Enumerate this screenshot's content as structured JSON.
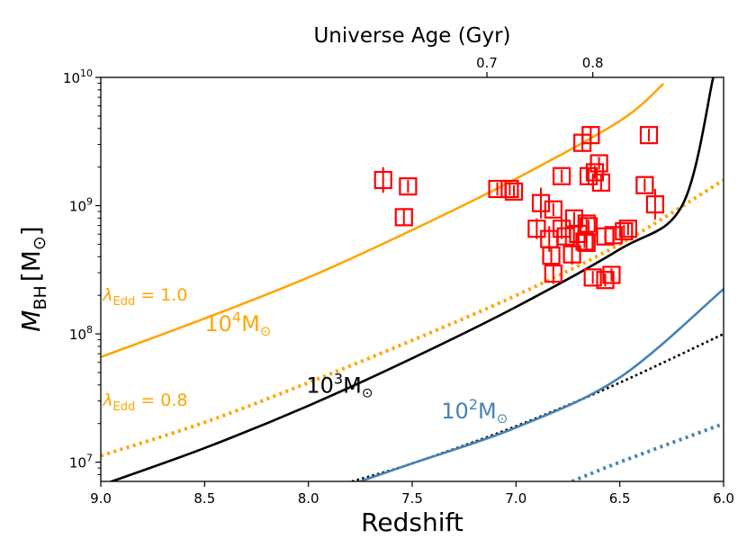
{
  "chart_data": {
    "type": "scatter",
    "title": "",
    "xlabel": "Redshift",
    "ylabel_main": "M",
    "ylabel_sub": "BH",
    "ylabel_unit": "[M",
    "ylabel_unit_sub": "⊙",
    "ylabel_close": "]",
    "top_xlabel": "Universe Age (Gyr)",
    "xlim": [
      9.0,
      6.0
    ],
    "ylim_log10": [
      6.85,
      10.0
    ],
    "x_ticks": [
      {
        "value": 9.0,
        "label": "9.0"
      },
      {
        "value": 8.5,
        "label": "8.5"
      },
      {
        "value": 8.0,
        "label": "8.0"
      },
      {
        "value": 7.5,
        "label": "7.5"
      },
      {
        "value": 7.0,
        "label": "7.0"
      },
      {
        "value": 6.5,
        "label": "6.5"
      },
      {
        "value": 6.0,
        "label": "6.0"
      }
    ],
    "y_ticks": [
      {
        "exp": 7,
        "base": "10",
        "sup": "7"
      },
      {
        "exp": 8,
        "base": "10",
        "sup": "8"
      },
      {
        "exp": 9,
        "base": "10",
        "sup": "9"
      },
      {
        "exp": 10,
        "base": "10",
        "sup": "10"
      }
    ],
    "top_ticks": [
      {
        "z": 7.14,
        "label": "0.7"
      },
      {
        "z": 6.63,
        "label": "0.8"
      }
    ],
    "colors": {
      "orange": "#ffa500",
      "black": "#000000",
      "blue": "#4682b4",
      "red": "#ff0000"
    },
    "curves": [
      {
        "name": "seed-1e4-edd1",
        "color": "orange",
        "style": "solid",
        "points": [
          [
            9.0,
            7.82
          ],
          [
            8.5,
            8.12
          ],
          [
            8.0,
            8.44
          ],
          [
            7.5,
            8.81
          ],
          [
            7.0,
            9.21
          ],
          [
            6.5,
            9.66
          ],
          [
            6.29,
            9.95
          ]
        ]
      },
      {
        "name": "seed-1e4-edd08",
        "color": "orange",
        "style": "dotted",
        "points": [
          [
            9.0,
            7.05
          ],
          [
            8.5,
            7.31
          ],
          [
            8.0,
            7.62
          ],
          [
            7.5,
            7.95
          ],
          [
            7.0,
            8.3
          ],
          [
            6.5,
            8.7
          ],
          [
            6.0,
            9.2
          ]
        ]
      },
      {
        "name": "seed-1e3-edd1",
        "color": "black",
        "style": "solid",
        "points": [
          [
            9.0,
            6.82
          ],
          [
            8.5,
            7.11
          ],
          [
            8.0,
            7.44
          ],
          [
            7.5,
            7.81
          ],
          [
            7.0,
            8.21
          ],
          [
            6.5,
            8.66
          ],
          [
            6.2,
            9.0
          ],
          [
            6.05,
            10.0
          ]
        ]
      },
      {
        "name": "seed-1e3-edd08",
        "color": "black",
        "style": "dotted",
        "points": [
          [
            7.79,
            6.85
          ],
          [
            7.5,
            6.99
          ],
          [
            7.0,
            7.28
          ],
          [
            6.5,
            7.62
          ],
          [
            6.0,
            8.0
          ]
        ]
      },
      {
        "name": "seed-1e2-edd1",
        "color": "blue",
        "style": "solid",
        "points": [
          [
            7.75,
            6.85
          ],
          [
            7.5,
            6.99
          ],
          [
            7.0,
            7.27
          ],
          [
            6.5,
            7.66
          ],
          [
            6.0,
            8.35
          ]
        ]
      },
      {
        "name": "seed-1e2-edd08",
        "color": "blue",
        "style": "dotted",
        "points": [
          [
            6.73,
            6.85
          ],
          [
            6.5,
            7.0
          ],
          [
            6.0,
            7.3
          ]
        ]
      }
    ],
    "points": [
      {
        "z": 7.64,
        "logm": 9.2,
        "err": 0.1
      },
      {
        "z": 7.54,
        "logm": 8.91,
        "err": 0.07
      },
      {
        "z": 7.52,
        "logm": 9.15,
        "err": 0.05
      },
      {
        "z": 7.09,
        "logm": 9.13,
        "err": 0.05
      },
      {
        "z": 7.03,
        "logm": 9.13,
        "err": 0.05
      },
      {
        "z": 7.01,
        "logm": 9.11,
        "err": 0.05
      },
      {
        "z": 6.9,
        "logm": 8.82,
        "err": 0.08
      },
      {
        "z": 6.88,
        "logm": 9.02,
        "err": 0.12
      },
      {
        "z": 6.84,
        "logm": 8.74,
        "err": 0.1
      },
      {
        "z": 6.83,
        "logm": 8.61,
        "err": 0.07
      },
      {
        "z": 6.82,
        "logm": 8.97,
        "err": 0.05
      },
      {
        "z": 6.82,
        "logm": 8.47,
        "err": 0.08
      },
      {
        "z": 6.78,
        "logm": 9.23,
        "err": 0.05
      },
      {
        "z": 6.78,
        "logm": 8.82,
        "err": 0.08
      },
      {
        "z": 6.76,
        "logm": 8.76,
        "err": 0.06
      },
      {
        "z": 6.73,
        "logm": 8.62,
        "err": 0.08
      },
      {
        "z": 6.72,
        "logm": 8.9,
        "err": 0.05
      },
      {
        "z": 6.7,
        "logm": 8.78,
        "err": 0.06
      },
      {
        "z": 6.68,
        "logm": 9.49,
        "err": 0.07
      },
      {
        "z": 6.67,
        "logm": 8.72,
        "err": 0.05
      },
      {
        "z": 6.66,
        "logm": 8.86,
        "err": 0.05
      },
      {
        "z": 6.66,
        "logm": 8.71,
        "err": 0.05
      },
      {
        "z": 6.65,
        "logm": 9.23,
        "err": 0.06
      },
      {
        "z": 6.65,
        "logm": 8.84,
        "err": 0.05
      },
      {
        "z": 6.64,
        "logm": 9.55,
        "err": 0.06
      },
      {
        "z": 6.63,
        "logm": 8.44,
        "err": 0.05
      },
      {
        "z": 6.62,
        "logm": 9.26,
        "err": 0.05
      },
      {
        "z": 6.6,
        "logm": 9.33,
        "err": 0.05
      },
      {
        "z": 6.59,
        "logm": 9.18,
        "err": 0.07
      },
      {
        "z": 6.57,
        "logm": 8.76,
        "err": 0.05
      },
      {
        "z": 6.57,
        "logm": 8.42,
        "err": 0.05
      },
      {
        "z": 6.54,
        "logm": 8.46,
        "err": 0.05
      },
      {
        "z": 6.53,
        "logm": 8.77,
        "err": 0.05
      },
      {
        "z": 6.48,
        "logm": 8.8,
        "err": 0.05
      },
      {
        "z": 6.46,
        "logm": 8.82,
        "err": 0.05
      },
      {
        "z": 6.38,
        "logm": 9.16,
        "err": 0.05
      },
      {
        "z": 6.36,
        "logm": 9.55,
        "err": 0.05
      },
      {
        "z": 6.33,
        "logm": 9.01,
        "err": 0.12
      }
    ],
    "annotations": [
      {
        "name": "label-edd-1",
        "color": "orange",
        "lambda": "λ",
        "sub": "Edd",
        "tail": " = 1.0",
        "z": 8.99,
        "logm": 8.26
      },
      {
        "name": "label-1e4",
        "color": "orange",
        "base": "10",
        "sup": "4",
        "tail": "M",
        "sun": "⊙",
        "z": 8.5,
        "logm": 8.02
      },
      {
        "name": "label-edd-08",
        "color": "orange",
        "lambda": "λ",
        "sub": "Edd",
        "tail": " = 0.8",
        "z": 8.99,
        "logm": 7.44
      },
      {
        "name": "label-1e3",
        "color": "black",
        "base": "10",
        "sup": "3",
        "tail": "M",
        "sun": "⊙",
        "z": 8.01,
        "logm": 7.54
      },
      {
        "name": "label-1e2",
        "color": "blue",
        "base": "10",
        "sup": "2",
        "tail": "M",
        "sun": "⊙",
        "z": 7.36,
        "logm": 7.34
      }
    ]
  }
}
